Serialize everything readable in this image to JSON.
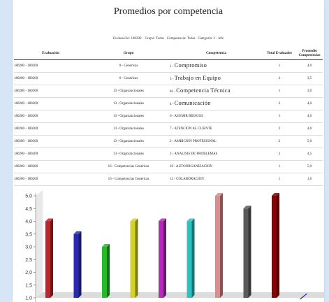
{
  "report": {
    "title": "Promedios por competencia",
    "params": {
      "evaluacion_label": "Evaluación:",
      "evaluacion_value": "180200",
      "grupo_label": "Grupo:",
      "grupo_value": "Todos",
      "competencia_label": "Competencia:",
      "competencia_value": "Todas",
      "categoria_label": "Categoría:",
      "categoria_value": "2 - Jefe"
    }
  },
  "table": {
    "headers": [
      "Evaluación",
      "Grupo",
      "Competencia",
      "Total Evaluados",
      "Promedio Competencias"
    ],
    "rows": [
      {
        "evaluacion": "180200 - 180200",
        "grupo": "0 - Genéricas",
        "code": "1 -",
        "name": "Compromiso",
        "big": true,
        "total": "1",
        "promedio": "4,0"
      },
      {
        "evaluacion": "180200 - 180200",
        "grupo": "0 - Genéricas",
        "code": "5 -",
        "name": "Trabajo en Equipo",
        "big": true,
        "total": "2",
        "promedio": "3,5"
      },
      {
        "evaluacion": "180200 - 180200",
        "grupo": "13 - Organizacionales",
        "code": "82 -",
        "name": "Competencia Técnica",
        "big": true,
        "total": "1",
        "promedio": "3,0"
      },
      {
        "evaluacion": "180200 - 180200",
        "grupo": "13 - Organizacionales",
        "code": "4 -",
        "name": "Comunicación",
        "big": true,
        "total": "2",
        "promedio": "4,0"
      },
      {
        "evaluacion": "180200 - 180200",
        "grupo": "13 - Organizacionales",
        "code": "6 -",
        "name": "ASUMIR RIESGOS",
        "big": false,
        "total": "1",
        "promedio": "4,0"
      },
      {
        "evaluacion": "180200 - 180200",
        "grupo": "13 - Organizacionales",
        "code": "7 -",
        "name": "ATENCION AL CLIENTE",
        "big": false,
        "total": "2",
        "promedio": "4,0"
      },
      {
        "evaluacion": "180200 - 180200",
        "grupo": "13 - Organizacionales",
        "code": "2 -",
        "name": "AMBICION PROFESIONAL",
        "big": false,
        "total": "2",
        "promedio": "5,0"
      },
      {
        "evaluacion": "180200 - 180200",
        "grupo": "13 - Organizacionales",
        "code": "3 -",
        "name": "ANALISIS DE PROBLEMAS",
        "big": false,
        "total": "2",
        "promedio": "4,5"
      },
      {
        "evaluacion": "180200 - 180200",
        "grupo": "16 - Competencias Genéricas",
        "code": "10 -",
        "name": "AUTOORGANIZACION",
        "big": false,
        "total": "1",
        "promedio": "5,0"
      },
      {
        "evaluacion": "180200 - 180200",
        "grupo": "16 - Competencias Genéricas",
        "code": "12 -",
        "name": "COLABORACION",
        "big": false,
        "total": "1",
        "promedio": "1,0"
      }
    ]
  },
  "chart_data": {
    "type": "bar",
    "categories": [
      "Compromiso",
      "Trabajo en Equipo",
      "Competencia Técnica",
      "Comunicación",
      "ASUMIR RIESGOS",
      "ATENCION AL CLIENTE",
      "AMBICION PROFESIONAL",
      "ANALISIS DE PROBLEMAS",
      "AUTOORGANIZACION",
      "COLABORACION"
    ],
    "values": [
      4.0,
      3.5,
      3.0,
      4.0,
      4.0,
      4.0,
      5.0,
      4.5,
      5.0,
      1.0
    ],
    "colors": [
      "#c0252b",
      "#2a2ab0",
      "#28b828",
      "#d2d22a",
      "#b52ab8",
      "#30c0bf",
      "#d58f8f",
      "#5a5a5a",
      "#8c0000",
      "#2a2ab0"
    ],
    "yticks": [
      "1,0",
      "1,5",
      "2,0",
      "2,5",
      "3,0",
      "3,5",
      "4,0",
      "4,5",
      "5,0"
    ],
    "ylim": [
      1.0,
      5.0
    ],
    "grid": false
  }
}
